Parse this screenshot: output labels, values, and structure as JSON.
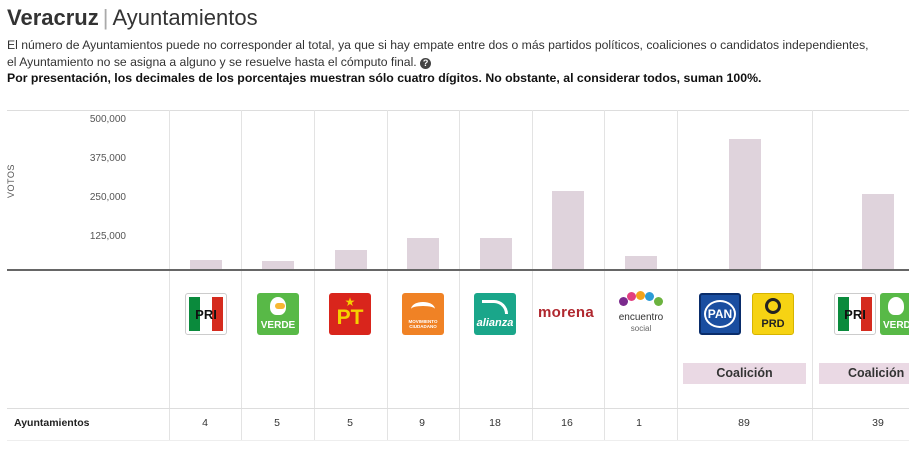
{
  "header": {
    "state": "Veracruz",
    "separator": "|",
    "section": "Ayuntamientos"
  },
  "notes": {
    "line1": "El número de Ayuntamientos puede no corresponder al total, ya que si hay empate entre dos o más partidos políticos, coaliciones o candidatos independientes,",
    "line2": "el Ayuntamiento no se asigna a alguno y se resuelve hasta el cómputo final.",
    "help_icon": "question-circle-icon",
    "bold": "Por presentación, los decimales de los porcentajes muestran sólo cuatro dígitos. No obstante, al considerar todos, suman 100%."
  },
  "chart_data": {
    "type": "bar",
    "ylabel": "VOTOS",
    "ylim": [
      0,
      500000
    ],
    "yticks": [
      "500,000",
      "375,000",
      "250,000",
      "125,000"
    ],
    "categories": [
      "PRI",
      "PVEM",
      "PT",
      "Movimiento Ciudadano",
      "Nueva Alianza",
      "morena",
      "Encuentro Social",
      "PAN-PRD",
      "PRI-PVEM"
    ],
    "values": [
      30000,
      27000,
      65000,
      103000,
      103000,
      262000,
      42000,
      437000,
      252000
    ],
    "bar_color": "#dfd3dc"
  },
  "parties": {
    "pri": "PRI",
    "verde": "VERDE",
    "pt_star": "★",
    "pt": "PT",
    "mc": "MOVIMIENTO CIUDADANO",
    "na": "alianza",
    "morena": "morena",
    "es_name": "encuentro",
    "es_sub": "social",
    "pan": "PAN",
    "prd": "PRD"
  },
  "coalition_label": "Coalición",
  "coalition_label_2": "Coalición",
  "row": {
    "label": "Ayuntamientos",
    "counts": [
      "4",
      "5",
      "5",
      "9",
      "18",
      "16",
      "1",
      "89",
      "39"
    ]
  }
}
